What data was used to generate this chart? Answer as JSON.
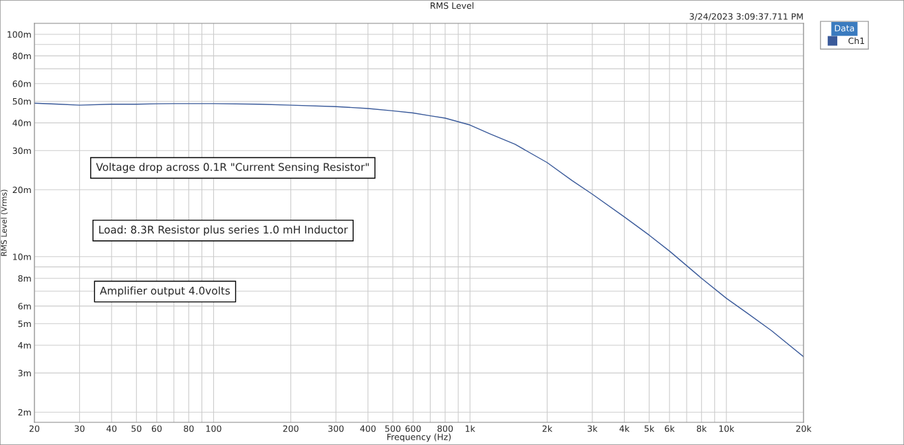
{
  "chart_data": {
    "type": "line",
    "title": "RMS Level",
    "xlabel": "Frequency (Hz)",
    "ylabel": "RMS Level (Vrms)",
    "annotations": [
      "3/24/2023 3:09:37.711 PM",
      "Voltage drop across 0.1R \"Current Sensing Resistor\"",
      "Load: 8.3R Resistor plus series 1.0 mH Inductor",
      "Amplifier output 4.0volts"
    ],
    "x": [
      20,
      25,
      30,
      40,
      50,
      60,
      70,
      100,
      150,
      200,
      300,
      400,
      500,
      600,
      700,
      800,
      1000,
      1200,
      1500,
      2000,
      2500,
      3000,
      4000,
      5000,
      6000,
      8000,
      10000,
      12000,
      15000,
      20000
    ],
    "series": [
      {
        "name": "Ch1",
        "color": "#3a5a9a",
        "values": [
          49,
          48.5,
          48,
          48.5,
          48.5,
          48.7,
          48.8,
          48.8,
          48.5,
          48,
          47.3,
          46.4,
          45.3,
          44.3,
          43,
          42,
          39.1,
          35.6,
          32,
          26.5,
          22,
          19.1,
          15.1,
          12.5,
          10.6,
          8,
          6.5,
          5.6,
          4.65,
          3.55
        ]
      }
    ],
    "log": "xy",
    "xlim": [
      20,
      20000
    ],
    "ylim": [
      1.8,
      112
    ],
    "xticks": [
      20,
      30,
      40,
      50,
      60,
      {
        "value": 70,
        "label": null
      },
      80,
      {
        "value": 90,
        "label": null
      },
      100,
      200,
      300,
      400,
      500,
      600,
      {
        "value": 700,
        "label": null
      },
      800,
      {
        "value": 900,
        "label": null
      },
      {
        "value": 1000,
        "label": "1k"
      },
      {
        "value": 2000,
        "label": "2k"
      },
      {
        "value": 3000,
        "label": "3k"
      },
      {
        "value": 4000,
        "label": "4k"
      },
      {
        "value": 5000,
        "label": "5k"
      },
      {
        "value": 6000,
        "label": "6k"
      },
      {
        "value": 7000,
        "label": null
      },
      {
        "value": 8000,
        "label": "8k"
      },
      {
        "value": 9000,
        "label": null
      },
      {
        "value": 10000,
        "label": "10k"
      },
      {
        "value": 20000,
        "label": "20k"
      }
    ],
    "yticks": [
      {
        "value": 2,
        "label": "2m"
      },
      {
        "value": 3,
        "label": "3m"
      },
      {
        "value": 4,
        "label": "4m"
      },
      {
        "value": 5,
        "label": "5m"
      },
      {
        "value": 6,
        "label": "6m"
      },
      {
        "value": 7,
        "label": null
      },
      {
        "value": 8,
        "label": "8m"
      },
      {
        "value": 9,
        "label": null
      },
      {
        "value": 10,
        "label": "10m"
      },
      {
        "value": 20,
        "label": "20m"
      },
      {
        "value": 30,
        "label": "30m"
      },
      {
        "value": 40,
        "label": "40m"
      },
      {
        "value": 50,
        "label": "50m"
      },
      {
        "value": 60,
        "label": "60m"
      },
      {
        "value": 70,
        "label": null
      },
      {
        "value": 80,
        "label": "80m"
      },
      {
        "value": 90,
        "label": null
      },
      {
        "value": 100,
        "label": "100m"
      }
    ],
    "grid": true,
    "legend": "top right",
    "legend_title": "Data"
  }
}
